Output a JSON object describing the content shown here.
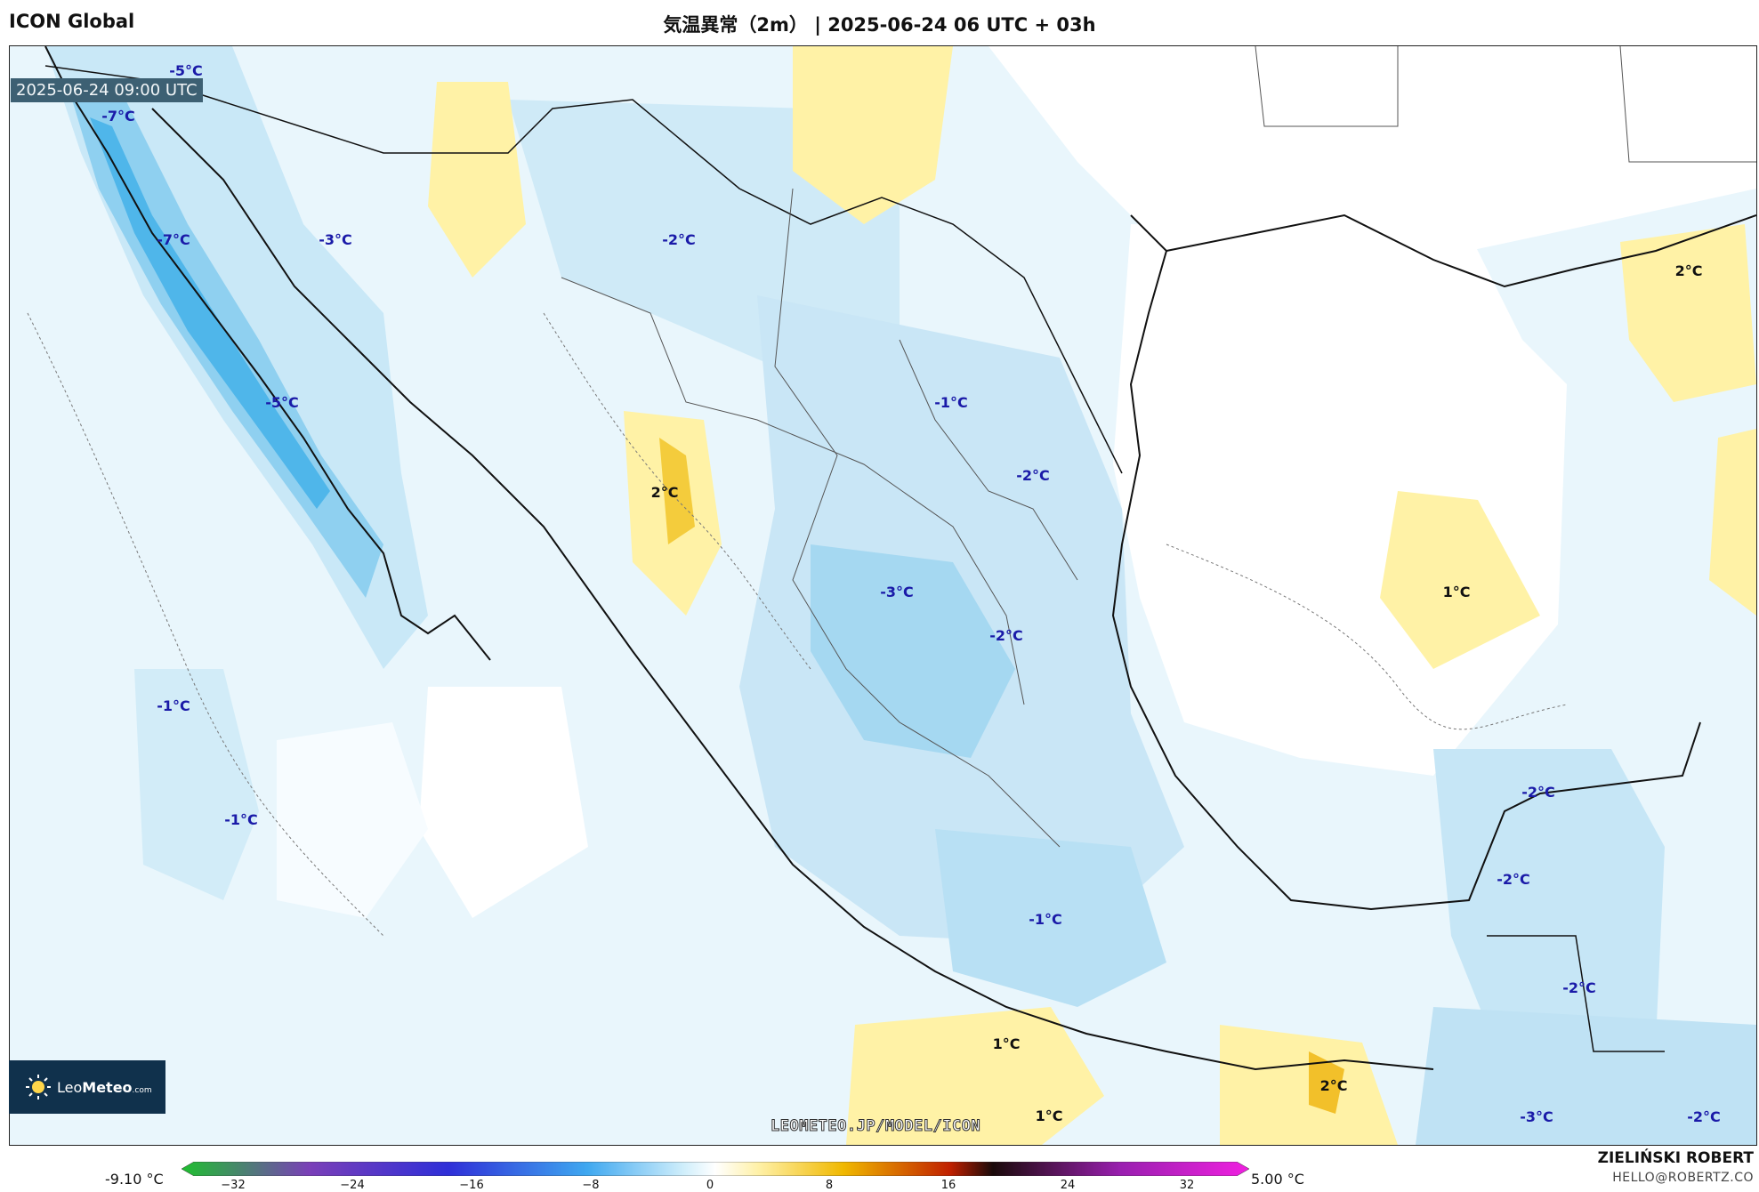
{
  "header": {
    "model": "ICON Global",
    "title": "気温異常（2m） | 2025-06-24 06 UTC + 03h"
  },
  "map": {
    "valid_time": "2025-06-24 09:00 UTC",
    "watermark": "LEOMETEO.JP/MODEL/ICON",
    "labels": [
      {
        "text": "-5°C",
        "kind": "cold"
      },
      {
        "text": "-7°C",
        "kind": "cold"
      },
      {
        "text": "-7°C",
        "kind": "cold"
      },
      {
        "text": "-3°C",
        "kind": "cold"
      },
      {
        "text": "-2°C",
        "kind": "cold"
      },
      {
        "text": "-5°C",
        "kind": "cold"
      },
      {
        "text": "-1°C",
        "kind": "cold"
      },
      {
        "text": "-2°C",
        "kind": "cold"
      },
      {
        "text": "2°C",
        "kind": "warm"
      },
      {
        "text": "-3°C",
        "kind": "cold"
      },
      {
        "text": "-2°C",
        "kind": "cold"
      },
      {
        "text": "2°C",
        "kind": "warm"
      },
      {
        "text": "1°C",
        "kind": "warm"
      },
      {
        "text": "-1°C",
        "kind": "cold"
      },
      {
        "text": "-1°C",
        "kind": "cold"
      },
      {
        "text": "-2°C",
        "kind": "cold"
      },
      {
        "text": "-2°C",
        "kind": "cold"
      },
      {
        "text": "-1°C",
        "kind": "cold"
      },
      {
        "text": "-2°C",
        "kind": "cold"
      },
      {
        "text": "1°C",
        "kind": "warm"
      },
      {
        "text": "2°C",
        "kind": "warm"
      },
      {
        "text": "1°C",
        "kind": "warm"
      },
      {
        "text": "-3°C",
        "kind": "cold"
      },
      {
        "text": "-2°C",
        "kind": "cold"
      }
    ]
  },
  "logo": {
    "name_light": "Leo",
    "name_bold": "Meteo",
    "suffix": ".com"
  },
  "colorbar": {
    "min_label": "-9.10 °C",
    "max_label": "5.00 °C",
    "ticks": [
      "−32",
      "−24",
      "−16",
      "−8",
      "0",
      "8",
      "16",
      "24",
      "32"
    ],
    "colors": [
      "#1fbf2f",
      "#7a3fb8",
      "#2f2fd8",
      "#3fa8f0",
      "#cfeefb",
      "#ffffff",
      "#fff1a8",
      "#f0b800",
      "#c02000",
      "#1a0a0a",
      "#9a1fb0",
      "#f020e0"
    ]
  },
  "credit": {
    "name": "ZIELIŃSKI ROBERT",
    "email": "HELLO@ROBERTZ.CO"
  },
  "colors": {
    "cold_label": "#1a1aa8",
    "warm_label": "#111111",
    "ocean_anomaly": "#e9f6fc",
    "warm_fill": "#fff2a6",
    "cold_fill": "#c9e8f7"
  }
}
